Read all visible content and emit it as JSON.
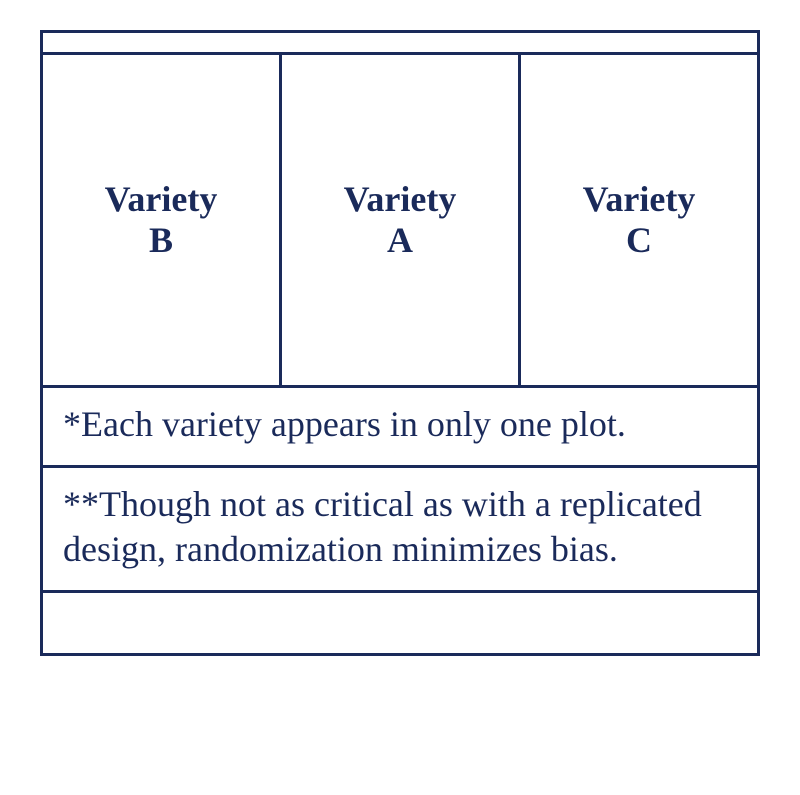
{
  "table": {
    "border_color": "#1a2a5a",
    "text_color": "#1a2a5a",
    "background_color": "#ffffff",
    "font_family": "Times New Roman",
    "label_fontsize": 36,
    "label_fontweight": "bold",
    "note_fontsize": 36,
    "varieties": [
      {
        "line1": "Variety",
        "line2": "B"
      },
      {
        "line1": "Variety",
        "line2": "A"
      },
      {
        "line1": "Variety",
        "line2": "C"
      }
    ],
    "note1": "*Each variety appears in only one plot.",
    "note2": "**Though not as critical as with a replicated design, randomization minimizes bias."
  }
}
